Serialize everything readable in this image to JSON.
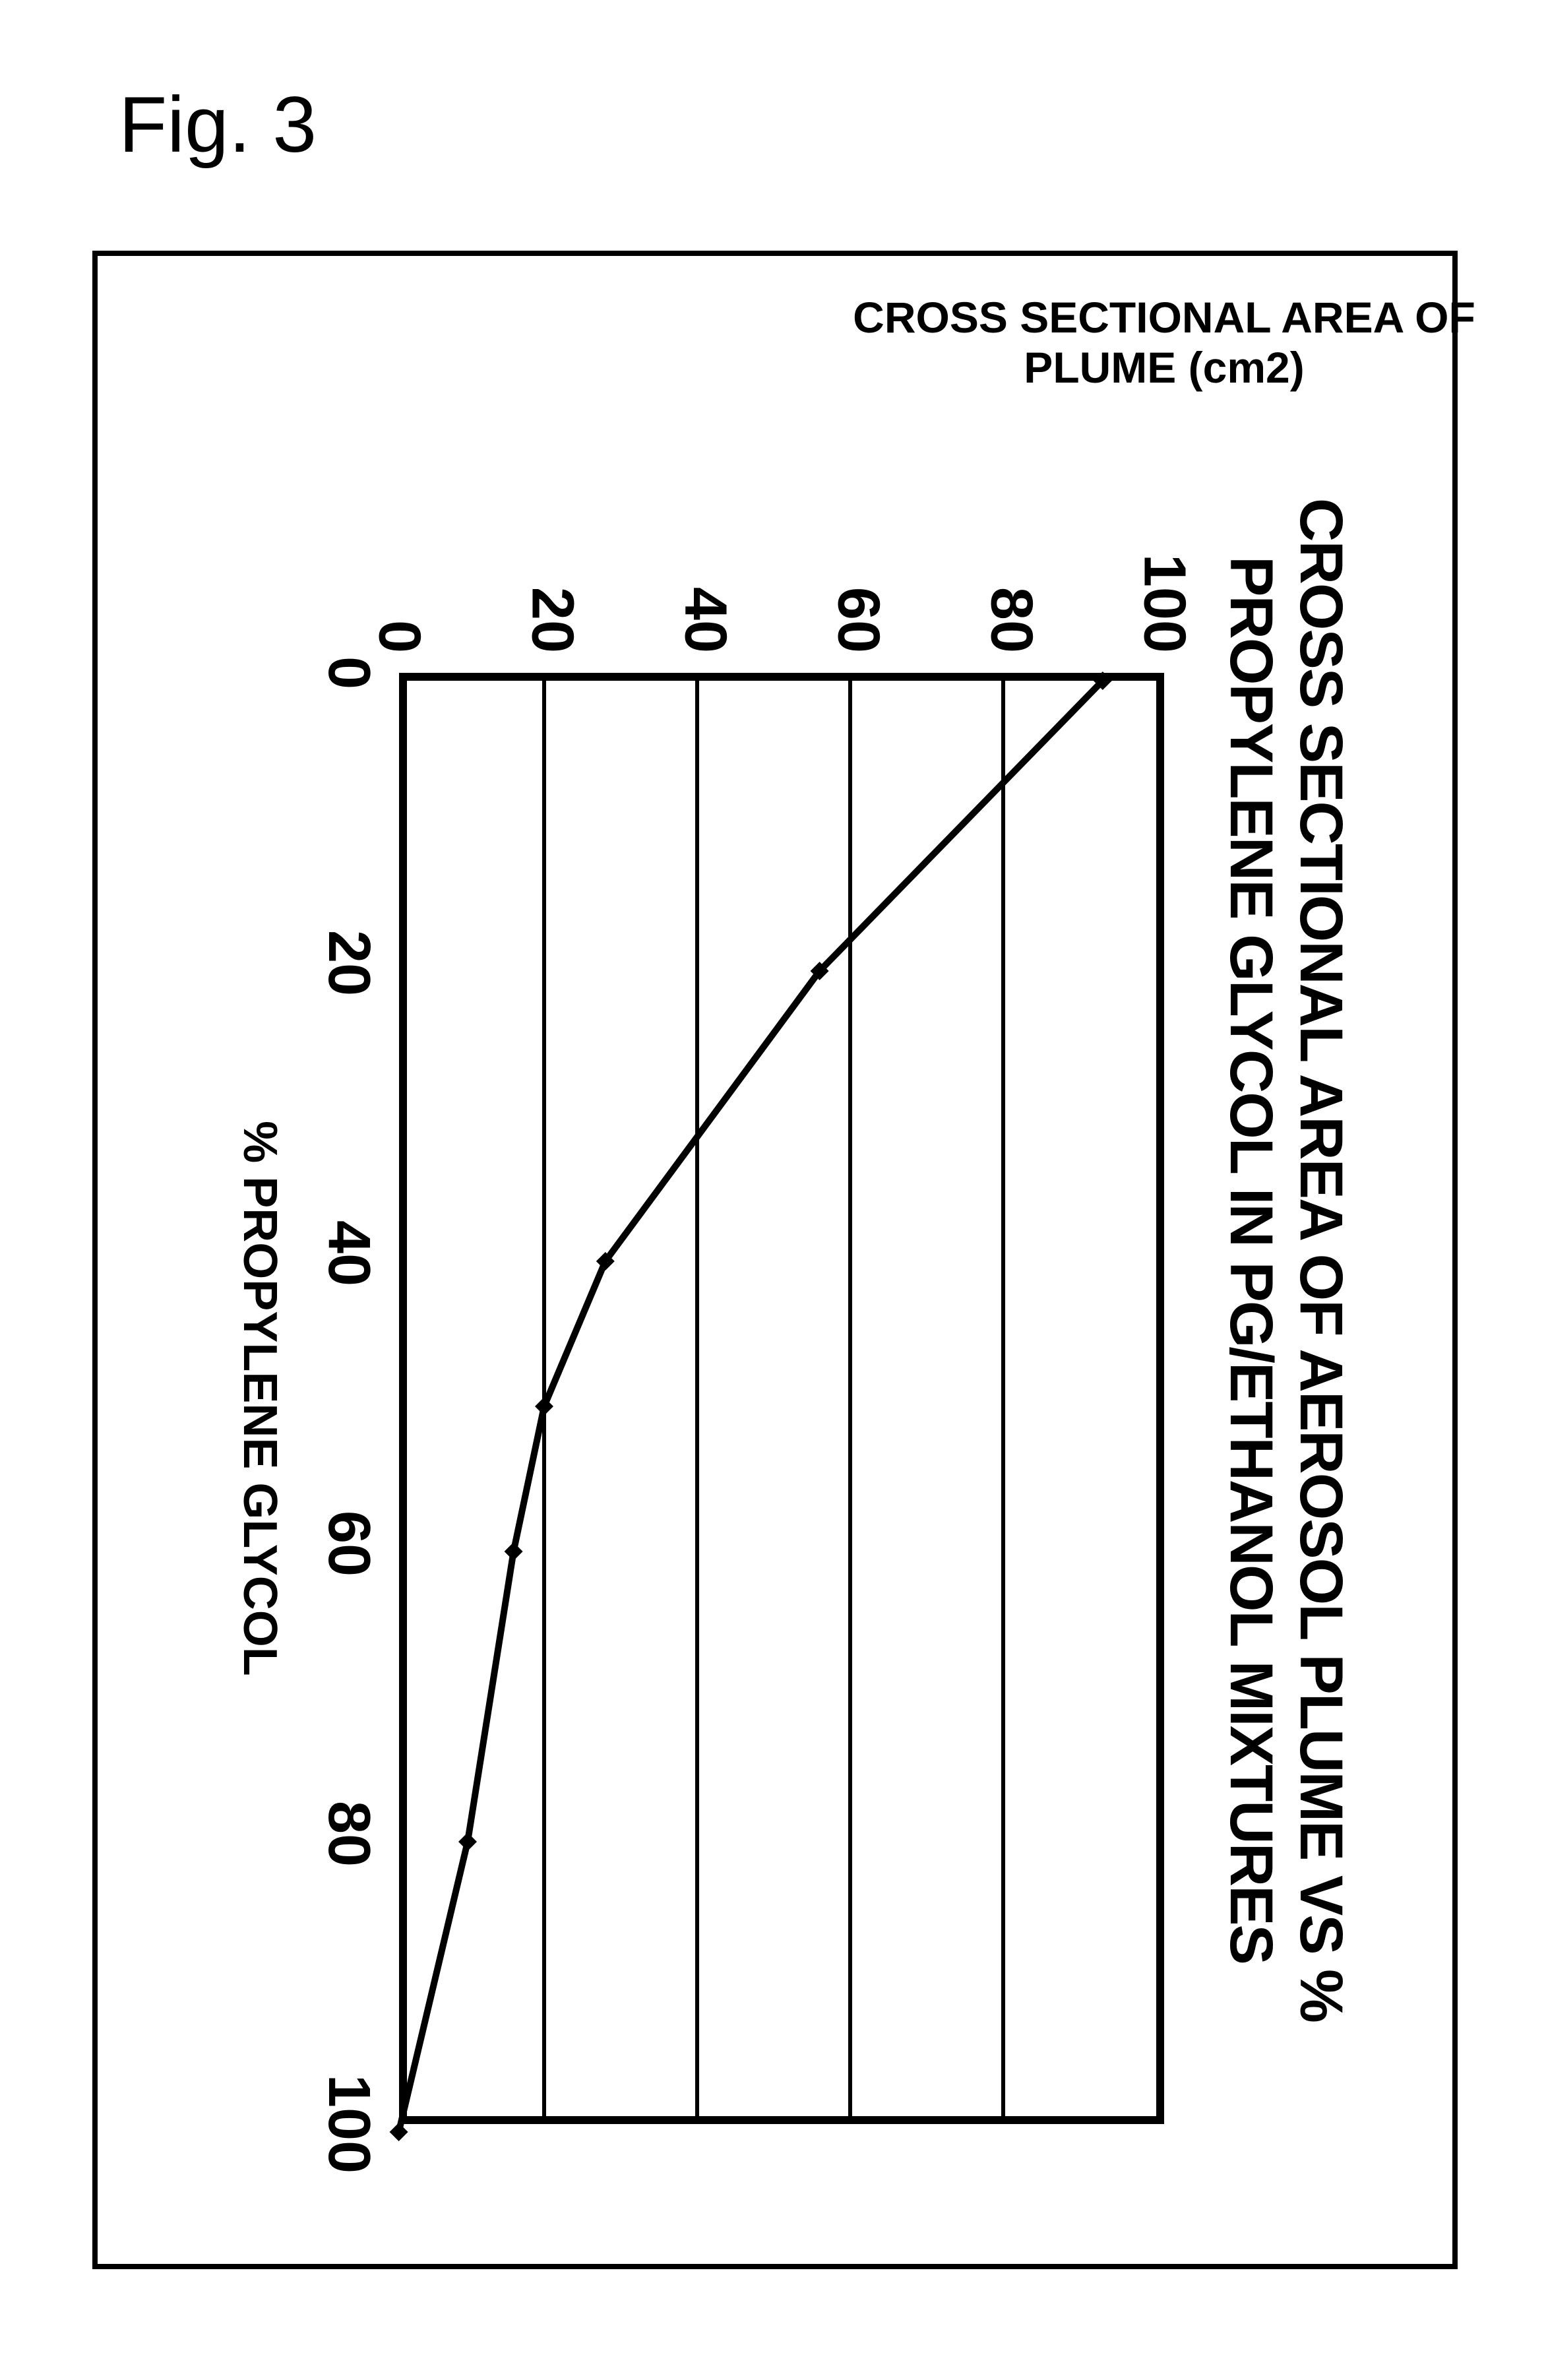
{
  "figure_label": "Fig. 3",
  "chart": {
    "type": "line",
    "title_line1": "CROSS SECTIONAL AREA OF AEROSOL PLUME VS %",
    "title_line2": "PROPYLENE GLYCOL IN PG/ETHANOL MIXTURES",
    "title_fontsize": 92,
    "title_weight": 900,
    "xlabel": "% PROPYLENE GLYCOL",
    "ylabel": "CROSS SECTIONAL AREA OF\nPLUME (cm2)",
    "xlabel_fontsize": 72,
    "ylabel_fontsize": 66,
    "label_weight": 900,
    "xlim": [
      0,
      100
    ],
    "ylim": [
      0,
      100
    ],
    "xtick_step": 20,
    "ytick_step": 20,
    "xticks": [
      0,
      20,
      40,
      60,
      80,
      100
    ],
    "yticks": [
      0,
      20,
      40,
      60,
      80,
      100
    ],
    "tick_fontsize": 90,
    "tick_weight": 900,
    "grid_y": true,
    "grid_color": "#000000",
    "grid_line_width": 6,
    "border_color": "#000000",
    "border_width": 12,
    "background_color": "#ffffff",
    "line_color": "#000000",
    "line_width": 10,
    "marker_style": "diamond",
    "marker_size": 28,
    "marker_fill": "#000000",
    "x_values": [
      0,
      20,
      40,
      50,
      60,
      80,
      100
    ],
    "y_values": [
      93,
      56,
      28,
      20,
      16,
      10,
      1
    ]
  }
}
